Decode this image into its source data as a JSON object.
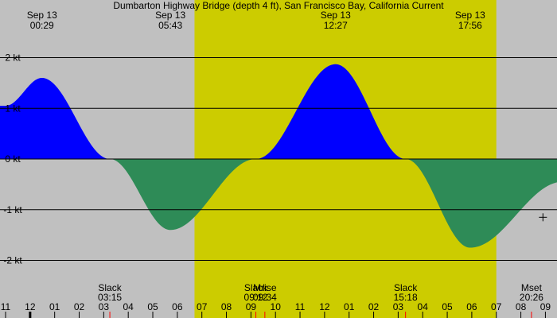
{
  "chart_data": {
    "type": "area",
    "title": "Dumbarton Highway Bridge (depth 4 ft), San Francisco Bay, California Current",
    "colors": {
      "background_night": "#c0c0c0",
      "background_day": "#cccc00",
      "flood": "#0000ff",
      "ebb": "#2e8b57",
      "marker": "#ff0000"
    },
    "xlim_hours": [
      -1.0,
      21.7
    ],
    "ylim": [
      -2.3,
      2.5
    ],
    "daylight_hours": [
      6.7,
      19.0
    ],
    "y_ticks": [
      {
        "value": 2,
        "label": "2 kt"
      },
      {
        "value": 1,
        "label": "1 kt"
      },
      {
        "value": 0,
        "label": "0 kt"
      },
      {
        "value": -1,
        "label": "-1 kt"
      },
      {
        "value": -2,
        "label": "-2 kt"
      }
    ],
    "x_ticks": [
      {
        "hour": -1,
        "label": "11"
      },
      {
        "hour": 0,
        "label": "12"
      },
      {
        "hour": 1,
        "label": "01"
      },
      {
        "hour": 2,
        "label": "02"
      },
      {
        "hour": 3,
        "label": "03"
      },
      {
        "hour": 4,
        "label": "04"
      },
      {
        "hour": 5,
        "label": "05"
      },
      {
        "hour": 6,
        "label": "06"
      },
      {
        "hour": 7,
        "label": "07"
      },
      {
        "hour": 8,
        "label": "08"
      },
      {
        "hour": 9,
        "label": "09"
      },
      {
        "hour": 10,
        "label": "10"
      },
      {
        "hour": 11,
        "label": "11"
      },
      {
        "hour": 12,
        "label": "12"
      },
      {
        "hour": 13,
        "label": "01"
      },
      {
        "hour": 14,
        "label": "02"
      },
      {
        "hour": 15,
        "label": "03"
      },
      {
        "hour": 16,
        "label": "04"
      },
      {
        "hour": 17,
        "label": "05"
      },
      {
        "hour": 18,
        "label": "06"
      },
      {
        "hour": 19,
        "label": "07"
      },
      {
        "hour": 20,
        "label": "08"
      },
      {
        "hour": 21,
        "label": "09"
      }
    ],
    "series": [
      {
        "x": [
          -1.0,
          0.483,
          3.25,
          5.717,
          9.2,
          12.45,
          15.3,
          17.933,
          21.7
        ],
        "y": [
          1.05,
          1.6,
          0.0,
          -1.4,
          0.0,
          1.87,
          0.0,
          -1.75,
          -0.45
        ]
      }
    ],
    "extrema": [
      {
        "hour": 0.483,
        "date": "Sep 13",
        "time": "00:29"
      },
      {
        "hour": 5.717,
        "date": "Sep 13",
        "time": "05:43"
      },
      {
        "hour": 12.45,
        "date": "Sep 13",
        "time": "12:27"
      },
      {
        "hour": 17.933,
        "date": "Sep 13",
        "time": "17:56"
      }
    ],
    "events": [
      {
        "hour": 3.25,
        "name": "Slack",
        "time": "03:15"
      },
      {
        "hour": 9.2,
        "name": "Slack",
        "time": "09:12"
      },
      {
        "hour": 9.567,
        "name": "Mrise",
        "time": "09:34"
      },
      {
        "hour": 15.3,
        "name": "Slack",
        "time": "15:18"
      },
      {
        "hour": 20.433,
        "name": "Mset",
        "time": "20:26"
      }
    ],
    "current_marker": {
      "hour": 20.9,
      "value": -1.15
    }
  }
}
